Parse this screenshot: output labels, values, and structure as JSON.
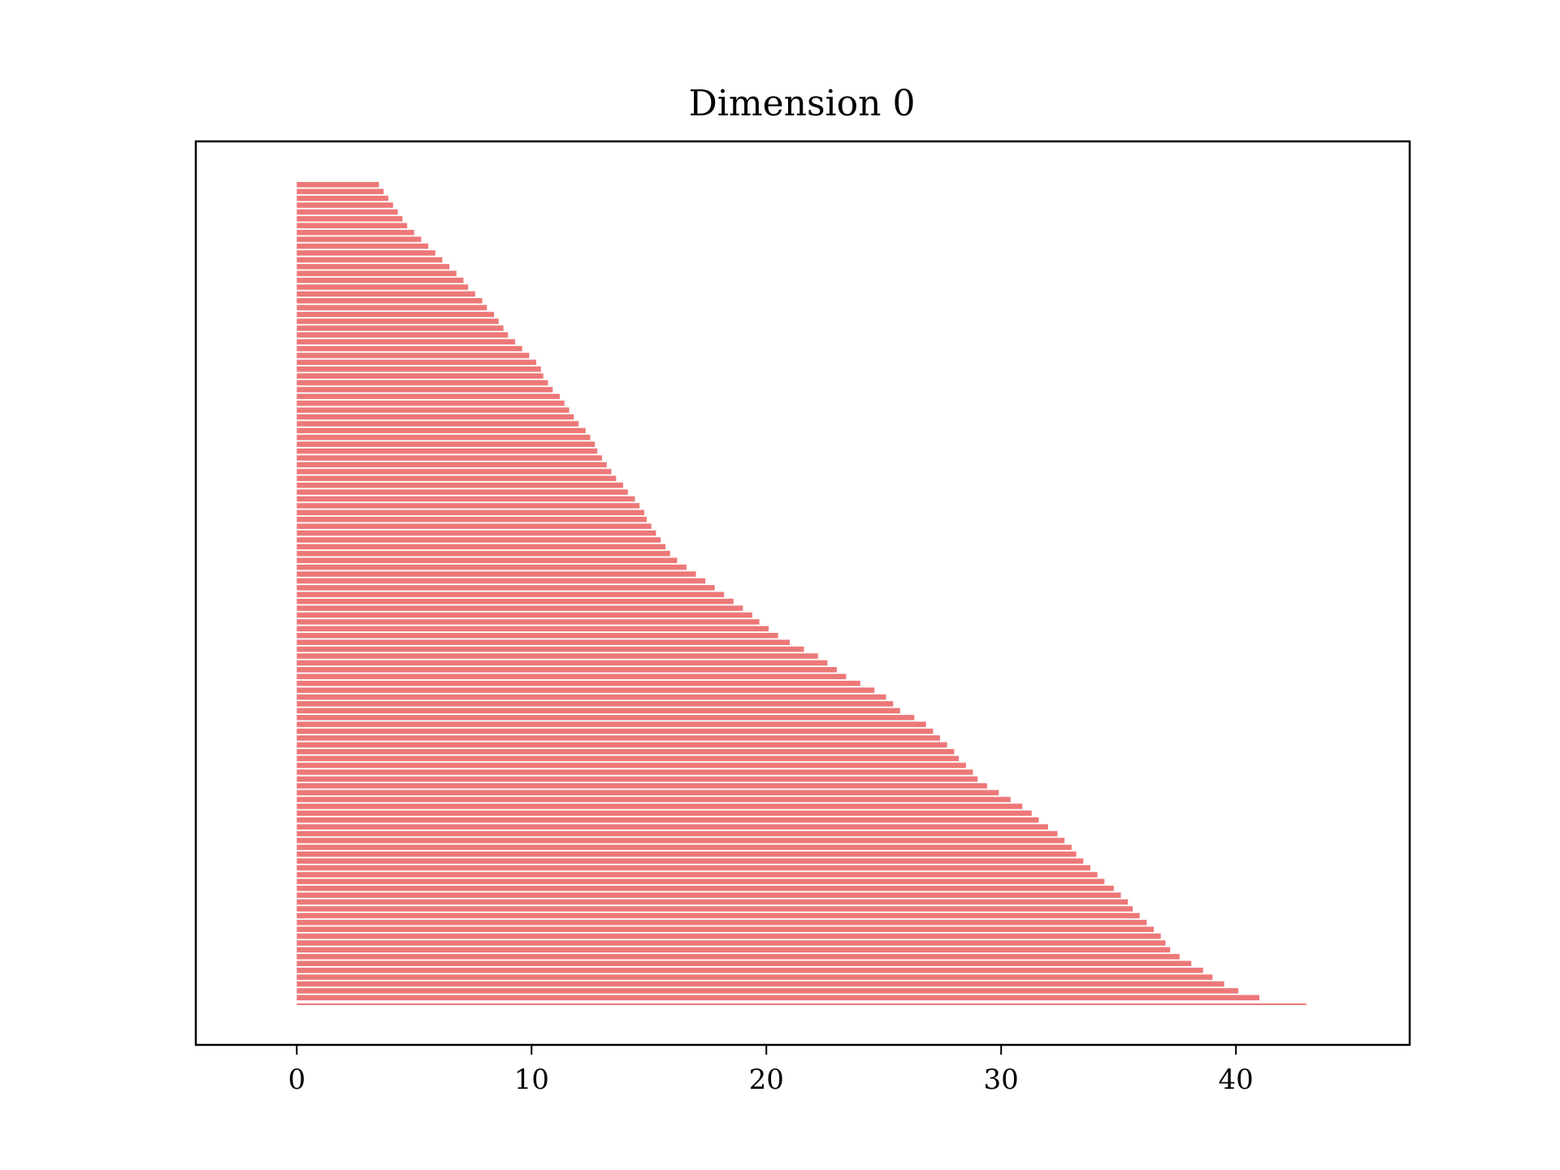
{
  "chart_data": {
    "type": "bar",
    "orientation": "horizontal",
    "title": "Dimension 0",
    "xlabel": "",
    "ylabel": "",
    "xlim": [
      -4.3,
      47.4
    ],
    "x_ticks": [
      0,
      10,
      20,
      30,
      40
    ],
    "x_tick_labels": [
      "0",
      "10",
      "20",
      "30",
      "40"
    ],
    "y_ticks_shown": false,
    "grid": false,
    "legend": "none",
    "bar_color": "#ed7878",
    "bar_start": 0,
    "bar_ends_top_to_bottom": [
      3.5,
      3.7,
      3.9,
      4.1,
      4.3,
      4.5,
      4.7,
      5.0,
      5.3,
      5.6,
      5.9,
      6.2,
      6.5,
      6.8,
      7.1,
      7.3,
      7.6,
      7.9,
      8.1,
      8.4,
      8.6,
      8.8,
      9.0,
      9.3,
      9.6,
      9.9,
      10.2,
      10.4,
      10.5,
      10.7,
      10.9,
      11.2,
      11.4,
      11.6,
      11.8,
      12.0,
      12.3,
      12.5,
      12.7,
      12.8,
      13.0,
      13.2,
      13.4,
      13.6,
      13.9,
      14.1,
      14.4,
      14.6,
      14.8,
      14.9,
      15.1,
      15.3,
      15.5,
      15.7,
      15.9,
      16.2,
      16.6,
      17.0,
      17.4,
      17.8,
      18.2,
      18.6,
      19.0,
      19.4,
      19.7,
      20.1,
      20.5,
      21.0,
      21.6,
      22.2,
      22.6,
      23.0,
      23.4,
      24.0,
      24.6,
      25.1,
      25.4,
      25.7,
      26.3,
      26.8,
      27.1,
      27.4,
      27.7,
      28.0,
      28.2,
      28.5,
      28.8,
      29.0,
      29.4,
      29.9,
      30.4,
      30.9,
      31.3,
      31.6,
      32.0,
      32.4,
      32.7,
      33.0,
      33.2,
      33.5,
      33.8,
      34.1,
      34.4,
      34.8,
      35.1,
      35.4,
      35.6,
      35.9,
      36.2,
      36.5,
      36.8,
      37.0,
      37.2,
      37.6,
      38.1,
      38.6,
      39.0,
      39.5,
      40.1,
      41.0
    ],
    "final_segment_end": 43.0
  }
}
